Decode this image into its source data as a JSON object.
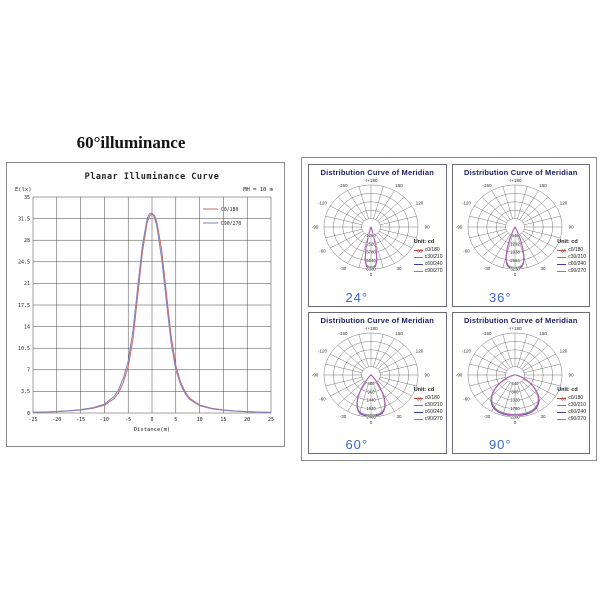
{
  "left_panel": {
    "heading": "60°illuminance"
  },
  "polar_common": {
    "title": "Distribution Curve of  Meridian",
    "unit_label": "Unit: cd",
    "legend": [
      {
        "name": "c0/180",
        "color": "#c94a42"
      },
      {
        "name": "c30/210",
        "color": "#44a24a"
      },
      {
        "name": "c60/240",
        "color": "#3d3da8"
      },
      {
        "name": "c90/270",
        "color": "#c45ec4"
      }
    ],
    "angle_labels": [
      {
        "g": 180,
        "t": "-/+180"
      },
      {
        "g": 0,
        "t": "0"
      },
      {
        "g": 30,
        "t": "30"
      },
      {
        "g": 60,
        "t": "60"
      },
      {
        "g": 90,
        "t": "90"
      },
      {
        "g": 120,
        "t": "120"
      },
      {
        "g": 150,
        "t": "150"
      },
      {
        "g": -30,
        "t": "-30"
      },
      {
        "g": -60,
        "t": "-60"
      },
      {
        "g": -90,
        "t": "-90"
      },
      {
        "g": -120,
        "t": "-120"
      },
      {
        "g": -150,
        "t": "-150"
      }
    ]
  },
  "chart_data": [
    {
      "type": "line",
      "title": "Planar Illuminance Curve",
      "ylabel": "E(lx)",
      "xlabel": "Distance(m)",
      "annotation": "MH = 10 m",
      "xlim": [
        -25,
        25
      ],
      "ylim": [
        0,
        35
      ],
      "xticks": [
        -25,
        -20,
        -15,
        -10,
        -5,
        0,
        5,
        10,
        15,
        20,
        25
      ],
      "yticks": [
        0,
        3.5,
        7,
        10.5,
        14,
        17.5,
        21,
        24.5,
        28,
        31.5,
        35
      ],
      "grid": true,
      "legend_position": "top-right",
      "x": [
        -25,
        -22.5,
        -20,
        -17.5,
        -15,
        -12.5,
        -10,
        -8,
        -7,
        -6,
        -5,
        -4,
        -3,
        -2,
        -1,
        -0.5,
        0,
        0.5,
        1,
        2,
        3,
        4,
        5,
        6,
        7,
        8,
        10,
        12.5,
        15,
        17.5,
        20,
        22.5,
        25
      ],
      "series": [
        {
          "name": "C0/180",
          "color": "#c96a64",
          "y": [
            0.1,
            0.15,
            0.22,
            0.32,
            0.48,
            0.75,
            1.25,
            2.3,
            3.3,
            5.0,
            7.5,
            12.0,
            19.0,
            26.2,
            30.9,
            31.9,
            32.3,
            32.0,
            31.0,
            26.6,
            19.6,
            12.6,
            7.7,
            5.0,
            3.4,
            2.35,
            1.3,
            0.78,
            0.5,
            0.33,
            0.23,
            0.16,
            0.1
          ]
        },
        {
          "name": "C90/270",
          "color": "#7c82c4",
          "y": [
            0.12,
            0.17,
            0.25,
            0.37,
            0.55,
            0.85,
            1.45,
            2.65,
            3.8,
            5.7,
            8.4,
            13.4,
            20.4,
            27.3,
            31.5,
            32.3,
            32.4,
            31.7,
            30.3,
            25.2,
            18.2,
            11.5,
            7.0,
            4.6,
            3.1,
            2.15,
            1.2,
            0.7,
            0.45,
            0.3,
            0.2,
            0.14,
            0.09
          ]
        }
      ]
    },
    {
      "type": "polar",
      "beam_label": "24°",
      "rings": [
        1260,
        2520,
        3780,
        5040,
        6300
      ],
      "ring_max": 6300,
      "lobe": {
        "imax": 6150,
        "sigma": 13.5,
        "power": 4
      }
    },
    {
      "type": "polar",
      "beam_label": "36°",
      "rings": [
        646,
        1292,
        1938,
        2584,
        3230
      ],
      "ring_max": 3230,
      "lobe": {
        "imax": 3180,
        "sigma": 20.5,
        "power": 4
      }
    },
    {
      "type": "polar",
      "beam_label": "60°",
      "rings": [
        480,
        960,
        1440,
        1920,
        2400
      ],
      "ring_max": 2400,
      "lobe": {
        "imax": 2340,
        "sigma": 33,
        "power": 4
      }
    },
    {
      "type": "polar",
      "beam_label": "90°",
      "rings": [
        440,
        880,
        1320,
        1760,
        2200
      ],
      "ring_max": 2200,
      "lobe": {
        "imax": 2120,
        "sigma": 60,
        "power": 4
      }
    }
  ]
}
